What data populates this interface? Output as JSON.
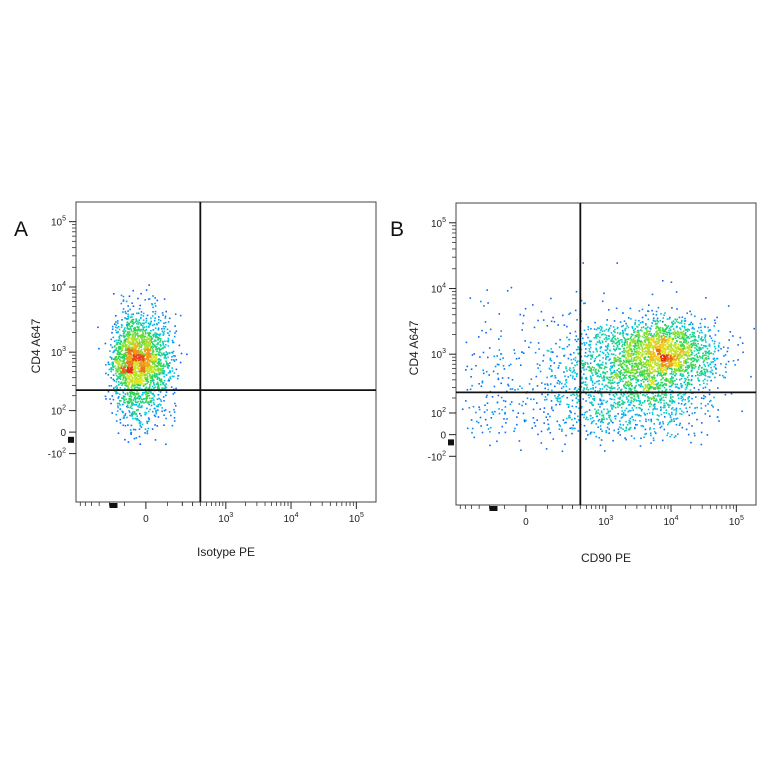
{
  "colors": {
    "density_low": "#1a1aff",
    "density_mid": "#00c8e6",
    "density_mid2": "#2fd64a",
    "density_high2": "#f0e61e",
    "density_high": "#e62814",
    "gate_line": "#111111",
    "frame": "#444444"
  },
  "chart_data": [
    {
      "panel": "A",
      "type": "scatter",
      "style": "density",
      "xlabel": "Isotype PE",
      "ylabel": "CD4 A647",
      "x_scale": "biexponential",
      "y_scale": "biexponential",
      "x_ticks": [
        {
          "value": 0,
          "label": "0",
          "exp": ""
        },
        {
          "value": 1000,
          "label": "10",
          "exp": "3"
        },
        {
          "value": 10000,
          "label": "10",
          "exp": "4"
        },
        {
          "value": 100000,
          "label": "10",
          "exp": "5"
        }
      ],
      "y_ticks": [
        {
          "value": -100,
          "label": "-10",
          "exp": "2"
        },
        {
          "value": 0,
          "label": "0",
          "exp": ""
        },
        {
          "value": 100,
          "label": "10",
          "exp": "2"
        },
        {
          "value": 1000,
          "label": "10",
          "exp": "3"
        },
        {
          "value": 10000,
          "label": "10",
          "exp": "4"
        },
        {
          "value": 100000,
          "label": "10",
          "exp": "5"
        }
      ],
      "quadrant_gate": {
        "x": 400,
        "y": 250
      },
      "populations": [
        {
          "x_center": -30,
          "x_spread": 70,
          "y_center": 800,
          "y_spread_log": 0.35,
          "count": 2200,
          "weight": 1.0
        }
      ]
    },
    {
      "panel": "B",
      "type": "scatter",
      "style": "density",
      "xlabel": "CD90 PE",
      "ylabel": "CD4 A647",
      "x_scale": "biexponential",
      "y_scale": "biexponential",
      "x_ticks": [
        {
          "value": 0,
          "label": "0",
          "exp": ""
        },
        {
          "value": 1000,
          "label": "10",
          "exp": "3"
        },
        {
          "value": 10000,
          "label": "10",
          "exp": "4"
        },
        {
          "value": 100000,
          "label": "10",
          "exp": "5"
        }
      ],
      "y_ticks": [
        {
          "value": -100,
          "label": "-10",
          "exp": "2"
        },
        {
          "value": 0,
          "label": "0",
          "exp": ""
        },
        {
          "value": 100,
          "label": "10",
          "exp": "2"
        },
        {
          "value": 1000,
          "label": "10",
          "exp": "3"
        },
        {
          "value": 10000,
          "label": "10",
          "exp": "4"
        },
        {
          "value": 100000,
          "label": "10",
          "exp": "5"
        }
      ],
      "quadrant_gate": {
        "x": 400,
        "y": 250
      },
      "populations": [
        {
          "x_center": 8000,
          "x_spread_log": 0.4,
          "y_center": 1100,
          "y_spread_log": 0.25,
          "count": 1600,
          "weight": 1.0
        },
        {
          "x_center": 2500,
          "x_spread_log": 0.55,
          "y_center": 500,
          "y_spread_log": 0.45,
          "count": 1500,
          "weight": 0.5
        },
        {
          "x_center": 50,
          "x_spread": 250,
          "y_center": 300,
          "y_spread_log": 0.6,
          "count": 350,
          "weight": 0.2
        }
      ]
    }
  ]
}
